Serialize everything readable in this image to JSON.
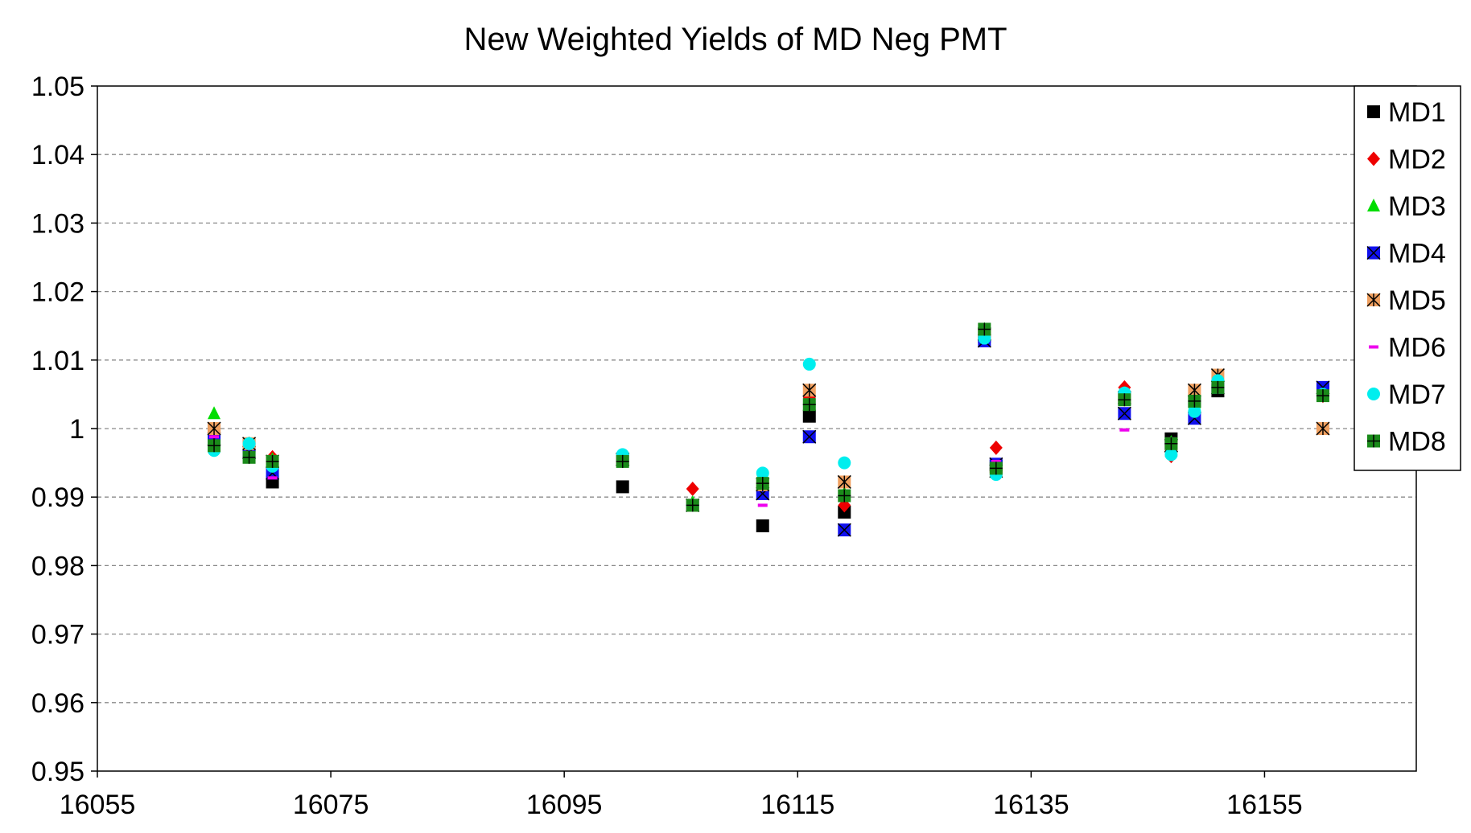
{
  "chart_data": {
    "type": "scatter",
    "title": "New Weighted Yields of MD Neg PMT",
    "xlabel": "",
    "ylabel": "",
    "xlim": [
      16055,
      16168
    ],
    "ylim": [
      0.95,
      1.05
    ],
    "x_ticks": [
      16055,
      16075,
      16095,
      16115,
      16135,
      16155
    ],
    "x_tick_labels": [
      "16055",
      "16075",
      "16095",
      "16115",
      "16135",
      "16155"
    ],
    "y_ticks": [
      0.95,
      0.96,
      0.97,
      0.98,
      0.99,
      1.0,
      1.01,
      1.02,
      1.03,
      1.04,
      1.05
    ],
    "y_tick_labels": [
      "0.95",
      "0.96",
      "0.97",
      "0.98",
      "0.99",
      "1",
      "1.01",
      "1.02",
      "1.03",
      "1.04",
      "1.05"
    ],
    "grid": "horizontal dashed",
    "legend_position": "top-right",
    "series": [
      {
        "name": "MD1",
        "marker": "square",
        "color": "#000000",
        "points": [
          [
            16065,
            1.0
          ],
          [
            16068,
            0.9975
          ],
          [
            16070,
            0.9922
          ],
          [
            16100,
            0.9915
          ],
          [
            16112,
            0.9858
          ],
          [
            16116,
            1.0018
          ],
          [
            16119,
            0.9878
          ],
          [
            16131,
            1.0135
          ],
          [
            16132,
            0.9945
          ],
          [
            16143,
            1.0045
          ],
          [
            16147,
            0.9985
          ],
          [
            16149,
            1.004
          ],
          [
            16151,
            1.0055
          ],
          [
            16160,
            1.0055
          ]
        ]
      },
      {
        "name": "MD2",
        "marker": "diamond",
        "color": "#ee0000",
        "points": [
          [
            16065,
            0.9995
          ],
          [
            16068,
            0.9968
          ],
          [
            16070,
            0.9958
          ],
          [
            16100,
            0.9955
          ],
          [
            16106,
            0.9912
          ],
          [
            16112,
            0.9918
          ],
          [
            16116,
            1.0045
          ],
          [
            16119,
            0.9888
          ],
          [
            16131,
            1.0138
          ],
          [
            16132,
            0.9972
          ],
          [
            16143,
            1.006
          ],
          [
            16147,
            0.996
          ],
          [
            16149,
            1.0035
          ],
          [
            16151,
            1.0065
          ],
          [
            16160,
            1.0048
          ]
        ]
      },
      {
        "name": "MD3",
        "marker": "triangle",
        "color": "#00dd00",
        "points": [
          [
            16065,
            1.0022
          ],
          [
            16068,
            0.9978
          ],
          [
            16070,
            0.9955
          ],
          [
            16100,
            0.996
          ],
          [
            16106,
            0.9892
          ],
          [
            16112,
            0.9925
          ],
          [
            16116,
            1.0035
          ],
          [
            16119,
            0.9905
          ],
          [
            16131,
            1.0145
          ],
          [
            16132,
            0.9938
          ],
          [
            16143,
            1.0052
          ],
          [
            16147,
            0.998
          ],
          [
            16149,
            1.0038
          ],
          [
            16151,
            1.0062
          ],
          [
            16160,
            1.0048
          ]
        ]
      },
      {
        "name": "MD4",
        "marker": "square-x",
        "color": "#1111ee",
        "points": [
          [
            16065,
            0.9985
          ],
          [
            16068,
            0.9965
          ],
          [
            16070,
            0.9935
          ],
          [
            16100,
            0.9955
          ],
          [
            16106,
            0.9888
          ],
          [
            16112,
            0.9905
          ],
          [
            16116,
            0.9988
          ],
          [
            16119,
            0.9852
          ],
          [
            16131,
            1.0128
          ],
          [
            16132,
            0.9948
          ],
          [
            16143,
            1.0022
          ],
          [
            16147,
            0.9975
          ],
          [
            16149,
            1.0015
          ],
          [
            16151,
            1.006
          ],
          [
            16160,
            1.006
          ]
        ]
      },
      {
        "name": "MD5",
        "marker": "square-star",
        "color": "#f0a060",
        "points": [
          [
            16065,
            1.0
          ],
          [
            16068,
            0.9978
          ],
          [
            16070,
            0.9952
          ],
          [
            16100,
            0.9955
          ],
          [
            16106,
            0.9888
          ],
          [
            16112,
            0.9918
          ],
          [
            16116,
            1.0056
          ],
          [
            16119,
            0.9922
          ],
          [
            16131,
            1.0138
          ],
          [
            16132,
            0.9938
          ],
          [
            16143,
            1.0045
          ],
          [
            16147,
            0.9975
          ],
          [
            16149,
            1.0056
          ],
          [
            16151,
            1.0078
          ],
          [
            16160,
            1.0
          ]
        ]
      },
      {
        "name": "MD6",
        "marker": "dash",
        "color": "#ee00ee",
        "points": [
          [
            16065,
            0.9988
          ],
          [
            16068,
            0.9965
          ],
          [
            16070,
            0.9928
          ],
          [
            16100,
            0.9955
          ],
          [
            16106,
            0.9885
          ],
          [
            16112,
            0.9888
          ],
          [
            16116,
            1.0042
          ],
          [
            16119,
            0.9895
          ],
          [
            16131,
            1.0128
          ],
          [
            16132,
            0.9952
          ],
          [
            16143,
            0.9998
          ],
          [
            16147,
            0.9985
          ],
          [
            16149,
            1.0035
          ],
          [
            16151,
            1.0055
          ],
          [
            16160,
            1.0045
          ]
        ]
      },
      {
        "name": "MD7",
        "marker": "circle",
        "color": "#00eeee",
        "points": [
          [
            16065,
            0.9968
          ],
          [
            16068,
            0.9978
          ],
          [
            16070,
            0.9945
          ],
          [
            16100,
            0.9962
          ],
          [
            16106,
            0.9888
          ],
          [
            16112,
            0.9935
          ],
          [
            16116,
            1.0094
          ],
          [
            16119,
            0.995
          ],
          [
            16131,
            1.0132
          ],
          [
            16132,
            0.9933
          ],
          [
            16143,
            1.0052
          ],
          [
            16147,
            0.9962
          ],
          [
            16149,
            1.0025
          ],
          [
            16151,
            1.007
          ],
          [
            16160,
            1.005
          ]
        ]
      },
      {
        "name": "MD8",
        "marker": "square-plus",
        "color": "#1a8a1a",
        "points": [
          [
            16065,
            0.9975
          ],
          [
            16068,
            0.9958
          ],
          [
            16070,
            0.9952
          ],
          [
            16100,
            0.9952
          ],
          [
            16106,
            0.9888
          ],
          [
            16112,
            0.992
          ],
          [
            16116,
            1.0035
          ],
          [
            16119,
            0.9902
          ],
          [
            16131,
            1.0145
          ],
          [
            16132,
            0.9942
          ],
          [
            16143,
            1.0042
          ],
          [
            16147,
            0.9978
          ],
          [
            16149,
            1.004
          ],
          [
            16151,
            1.006
          ],
          [
            16160,
            1.0048
          ]
        ]
      }
    ]
  }
}
